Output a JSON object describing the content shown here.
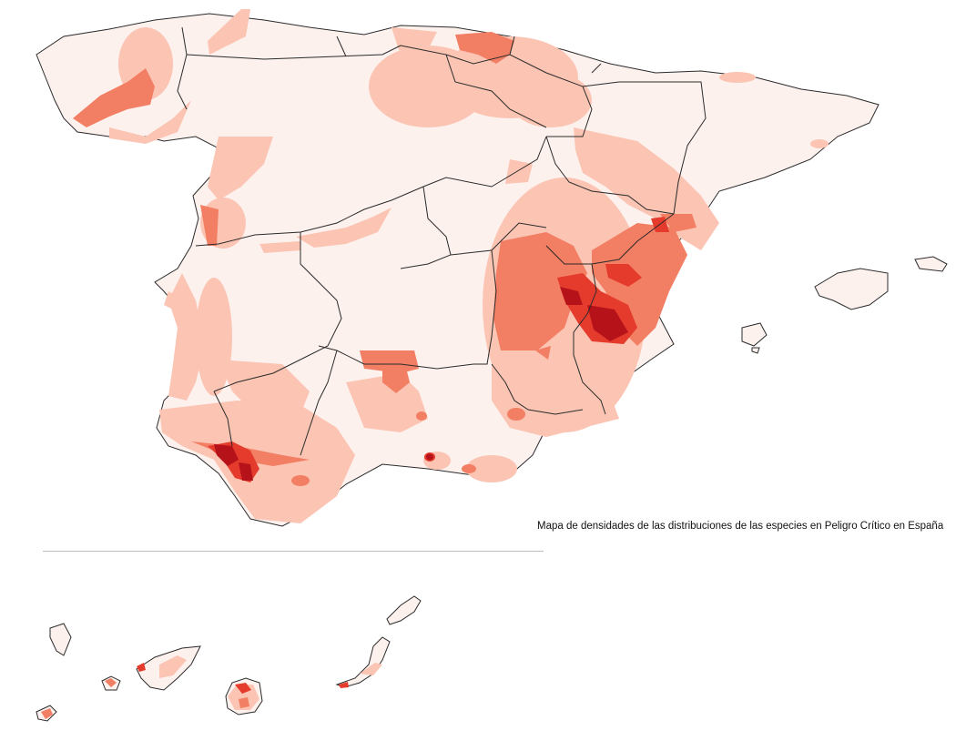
{
  "caption": "Mapa de densidades de las distribuciones de las especies en Peligro Crítico en España",
  "legend_palette": {
    "land": "#fdf1ee",
    "low": "#fbc4b3",
    "medium": "#f27e63",
    "high": "#e43b2c",
    "very_high": "#b5121a",
    "border": "#2b2b2b"
  }
}
